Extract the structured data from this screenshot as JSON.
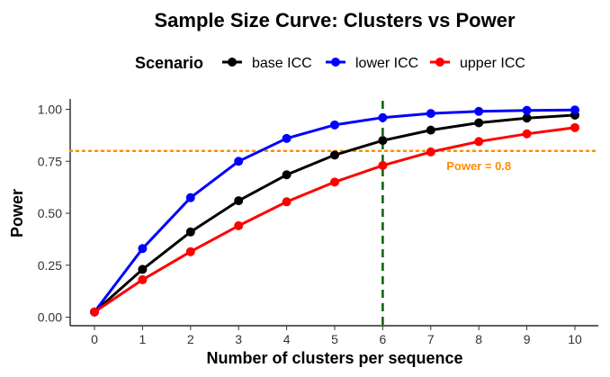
{
  "chart_data": {
    "type": "line",
    "title": "Sample Size Curve: Clusters vs Power",
    "xlabel": "Number of clusters per sequence",
    "ylabel": "Power",
    "x": [
      0,
      1,
      2,
      3,
      4,
      5,
      6,
      7,
      8,
      9,
      10
    ],
    "xlim": [
      0,
      10
    ],
    "ylim": [
      0,
      1
    ],
    "xticks": [
      "0",
      "1",
      "2",
      "3",
      "4",
      "5",
      "6",
      "7",
      "8",
      "9",
      "10"
    ],
    "yticks": [
      "0.00",
      "0.25",
      "0.50",
      "0.75",
      "1.00"
    ],
    "legend": {
      "title": "Scenario",
      "position": "top"
    },
    "series": [
      {
        "name": "base ICC",
        "color": "#000000",
        "values": [
          0.025,
          0.23,
          0.41,
          0.56,
          0.685,
          0.78,
          0.85,
          0.9,
          0.935,
          0.958,
          0.972
        ]
      },
      {
        "name": "lower ICC",
        "color": "#0000ff",
        "values": [
          0.025,
          0.33,
          0.575,
          0.75,
          0.86,
          0.925,
          0.96,
          0.98,
          0.99,
          0.995,
          0.997
        ]
      },
      {
        "name": "upper ICC",
        "color": "#ff0000",
        "values": [
          0.025,
          0.18,
          0.315,
          0.44,
          0.555,
          0.65,
          0.73,
          0.795,
          0.845,
          0.882,
          0.912
        ]
      }
    ],
    "reference_lines": [
      {
        "axis": "y",
        "value": 0.8,
        "color": "#ff8c00",
        "style": "dotted"
      },
      {
        "axis": "x",
        "value": 6,
        "color": "#006400",
        "style": "dashed"
      }
    ],
    "annotations": [
      {
        "text": "Power = 0.8",
        "x": 8,
        "y": 0.73,
        "color": "#ff8c00"
      }
    ],
    "grid": false
  }
}
